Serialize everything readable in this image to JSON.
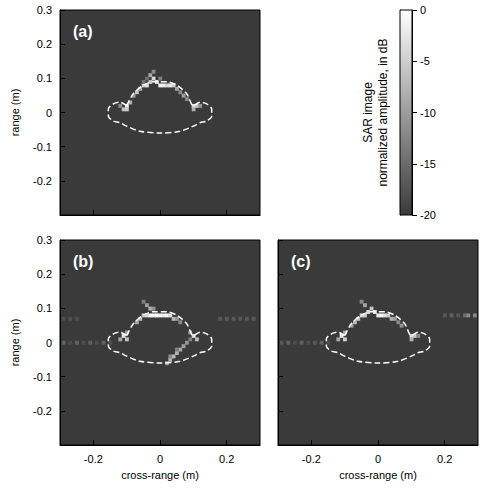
{
  "chart_data": {
    "type": "heatmap",
    "xlabel": "cross-range (m)",
    "ylabel": "range (m)",
    "xlim": [
      -0.3,
      0.3
    ],
    "ylim": [
      -0.3,
      0.3
    ],
    "xticks": [
      -0.2,
      0,
      0.2
    ],
    "yticks": [
      0.3,
      0.2,
      0.1,
      0,
      -0.1,
      -0.2
    ],
    "cell_size": 0.01,
    "colorbar": {
      "label": [
        "SAR image",
        "normalized amplitude, in dB"
      ],
      "range": [
        -20,
        0
      ],
      "ticks": [
        0,
        -5,
        -10,
        -15,
        -20
      ]
    },
    "outline": {
      "line_style": "dashed",
      "color": "#ffffff",
      "x": [
        -0.1,
        -0.08,
        -0.05,
        -0.02,
        0.02,
        0.05,
        0.08,
        0.1,
        0.12,
        0.14,
        0.155,
        0.155,
        0.14,
        0.12,
        0.1,
        0.06,
        0,
        -0.06,
        -0.1,
        -0.12,
        -0.14,
        -0.155,
        -0.155,
        -0.14,
        -0.12,
        -0.1
      ],
      "y": [
        0.02,
        0.055,
        0.08,
        0.09,
        0.09,
        0.08,
        0.055,
        0.02,
        0.03,
        0.025,
        0.01,
        -0.01,
        -0.025,
        -0.03,
        -0.04,
        -0.055,
        -0.06,
        -0.055,
        -0.04,
        -0.03,
        -0.025,
        -0.01,
        0.01,
        0.025,
        0.03,
        0.02
      ]
    },
    "panels": [
      {
        "label": "(a)",
        "tick_labels": "y",
        "cells": [
          [
            -0.1,
            0.02,
            -2
          ],
          [
            -0.11,
            0.01,
            -6
          ],
          [
            -0.09,
            0.03,
            -8
          ],
          [
            -0.1,
            0.01,
            -5
          ],
          [
            -0.12,
            0.02,
            -12
          ],
          [
            -0.08,
            0.05,
            -10
          ],
          [
            -0.07,
            0.06,
            -6
          ],
          [
            -0.06,
            0.07,
            -8
          ],
          [
            -0.05,
            0.08,
            -5
          ],
          [
            -0.04,
            0.08,
            -3
          ],
          [
            -0.03,
            0.09,
            -6
          ],
          [
            -0.02,
            0.1,
            -4
          ],
          [
            -0.03,
            0.11,
            -9
          ],
          [
            -0.02,
            0.12,
            -12
          ],
          [
            -0.01,
            0.09,
            -3
          ],
          [
            0,
            0.08,
            -1
          ],
          [
            0.01,
            0.08,
            -2
          ],
          [
            0.02,
            0.08,
            -4
          ],
          [
            0.03,
            0.08,
            -2
          ],
          [
            0.04,
            0.08,
            -5
          ],
          [
            0.05,
            0.07,
            -9
          ],
          [
            0.06,
            0.06,
            -12
          ],
          [
            0.07,
            0.05,
            -10
          ],
          [
            0.08,
            0.04,
            -12
          ],
          [
            0.1,
            0.02,
            -3
          ],
          [
            0.11,
            0.02,
            -6
          ],
          [
            0.1,
            0.01,
            -8
          ],
          [
            0.12,
            0.02,
            -11
          ],
          [
            -0.05,
            0.09,
            -14
          ],
          [
            0,
            0.1,
            -13
          ],
          [
            -0.04,
            0.1,
            -15
          ]
        ]
      },
      {
        "label": "(b)",
        "tick_labels": true,
        "cells": [
          [
            -0.11,
            0.02,
            -3
          ],
          [
            -0.1,
            0.01,
            -6
          ],
          [
            -0.12,
            0.01,
            -9
          ],
          [
            -0.1,
            0.03,
            -10
          ],
          [
            -0.07,
            0.06,
            -9
          ],
          [
            -0.06,
            0.07,
            -7
          ],
          [
            -0.05,
            0.08,
            -6
          ],
          [
            -0.04,
            0.08,
            -4
          ],
          [
            -0.03,
            0.08,
            -1
          ],
          [
            -0.02,
            0.08,
            -1
          ],
          [
            -0.01,
            0.08,
            0
          ],
          [
            0,
            0.08,
            -1
          ],
          [
            0.01,
            0.08,
            -2
          ],
          [
            0.02,
            0.08,
            -1
          ],
          [
            0.03,
            0.08,
            -3
          ],
          [
            0.04,
            0.07,
            -7
          ],
          [
            0.05,
            0.07,
            -10
          ],
          [
            0.06,
            0.06,
            -12
          ],
          [
            -0.04,
            0.11,
            -10
          ],
          [
            -0.05,
            0.12,
            -13
          ],
          [
            -0.03,
            0.1,
            -8
          ],
          [
            -0.02,
            0.1,
            -11
          ],
          [
            0.1,
            0.02,
            -3
          ],
          [
            0.11,
            0.01,
            -7
          ],
          [
            0.09,
            0.03,
            -10
          ],
          [
            0.02,
            -0.06,
            -10
          ],
          [
            0.03,
            -0.05,
            -8
          ],
          [
            0.04,
            -0.04,
            -7
          ],
          [
            0.05,
            -0.03,
            -8
          ],
          [
            0.06,
            -0.02,
            -9
          ],
          [
            0.07,
            -0.01,
            -10
          ],
          [
            0.08,
            0,
            -11
          ],
          [
            0.09,
            0.01,
            -13
          ],
          [
            0.03,
            -0.04,
            -12
          ],
          [
            0.05,
            -0.02,
            -13
          ],
          [
            -0.29,
            0,
            -16
          ],
          [
            -0.27,
            0,
            -18
          ],
          [
            -0.25,
            0,
            -16
          ],
          [
            -0.23,
            0,
            -18
          ],
          [
            -0.21,
            0,
            -16
          ],
          [
            -0.19,
            0,
            -18
          ],
          [
            -0.17,
            0,
            -16
          ],
          [
            -0.15,
            0,
            -18
          ],
          [
            0.18,
            0.07,
            -17
          ],
          [
            0.2,
            0.07,
            -17
          ],
          [
            0.22,
            0.07,
            -17
          ],
          [
            0.24,
            0.07,
            -17
          ],
          [
            0.26,
            0.07,
            -17
          ],
          [
            0.28,
            0.07,
            -17
          ],
          [
            -0.29,
            0.07,
            -18
          ],
          [
            -0.27,
            0.07,
            -18
          ],
          [
            -0.25,
            0.07,
            -18
          ]
        ]
      },
      {
        "label": "(c)",
        "tick_labels": "x",
        "cells": [
          [
            -0.11,
            0.02,
            -2
          ],
          [
            -0.1,
            0.01,
            -5
          ],
          [
            -0.12,
            0.01,
            -9
          ],
          [
            -0.1,
            0.03,
            -9
          ],
          [
            -0.08,
            0.05,
            -10
          ],
          [
            -0.07,
            0.06,
            -7
          ],
          [
            -0.06,
            0.07,
            -6
          ],
          [
            -0.05,
            0.08,
            -4
          ],
          [
            -0.04,
            0.08,
            -5
          ],
          [
            -0.03,
            0.09,
            -4
          ],
          [
            -0.02,
            0.1,
            -6
          ],
          [
            -0.04,
            0.11,
            -9
          ],
          [
            -0.05,
            0.12,
            -12
          ],
          [
            -0.01,
            0.09,
            -3
          ],
          [
            0,
            0.08,
            -2
          ],
          [
            0.01,
            0.08,
            -1
          ],
          [
            0.02,
            0.08,
            -3
          ],
          [
            0.03,
            0.08,
            -5
          ],
          [
            0.04,
            0.07,
            -8
          ],
          [
            0.05,
            0.07,
            -10
          ],
          [
            0.06,
            0.06,
            -12
          ],
          [
            0.07,
            0.05,
            -11
          ],
          [
            0.1,
            0.02,
            -3
          ],
          [
            0.11,
            0.02,
            -6
          ],
          [
            0.1,
            0.01,
            -8
          ],
          [
            0.12,
            0.02,
            -12
          ],
          [
            -0.29,
            0,
            -17
          ],
          [
            -0.27,
            0,
            -16
          ],
          [
            -0.25,
            0,
            -18
          ],
          [
            -0.23,
            0,
            -16
          ],
          [
            -0.21,
            0,
            -18
          ],
          [
            -0.19,
            0,
            -17
          ],
          [
            -0.17,
            0,
            -16
          ],
          [
            -0.15,
            0,
            -18
          ],
          [
            0.2,
            0.08,
            -17
          ],
          [
            0.22,
            0.08,
            -16
          ],
          [
            0.24,
            0.08,
            -17
          ],
          [
            0.26,
            0.08,
            -15
          ],
          [
            0.27,
            0.08,
            -12
          ],
          [
            0.29,
            0.08,
            -12
          ]
        ]
      }
    ]
  }
}
